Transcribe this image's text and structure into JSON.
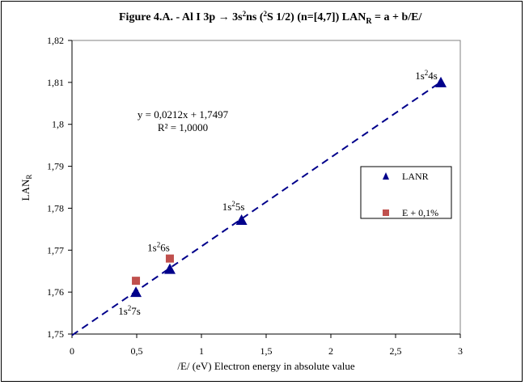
{
  "chart_data": {
    "type": "scatter",
    "title": {
      "prefix": "Figure 4.A. - Al I 3p ",
      "arrow": "→",
      "config": " 3s",
      "config_sup": "2",
      "config2": "ns (",
      "term_sup": "2",
      "term": "S 1/2) (n=[4,7])  LAN",
      "sub": "R",
      "suffix": " = a + b/E/"
    },
    "xlabel": "/E/ (eV) Electron energy in absolute value",
    "ylabel": "LAN",
    "ylabel_sub": "R",
    "xlim": [
      0,
      3
    ],
    "ylim": [
      1.75,
      1.82
    ],
    "xticks": [
      0,
      0.5,
      1,
      1.5,
      2,
      2.5,
      3
    ],
    "xtick_labels": [
      "0",
      "0,5",
      "1",
      "1,5",
      "2",
      "2,5",
      "3"
    ],
    "yticks": [
      1.75,
      1.76,
      1.77,
      1.78,
      1.79,
      1.8,
      1.81,
      1.82
    ],
    "ytick_labels": [
      "1,75",
      "1,76",
      "1,77",
      "1,78",
      "1,79",
      "1,8",
      "1,81",
      "1,82"
    ],
    "grid": false,
    "legend_position": "right",
    "series": [
      {
        "name": "LANR",
        "marker": "triangle",
        "color": "#00008B",
        "x": [
          2.85,
          1.31,
          0.756,
          0.494
        ],
        "y": [
          1.81,
          1.7772,
          1.7655,
          1.76
        ],
        "point_labels": [
          {
            "base": "1s",
            "sup": "2",
            "tail": "4s"
          },
          {
            "base": "1s",
            "sup": "2",
            "tail": "5s"
          },
          {
            "base": "1s",
            "sup": "2",
            "tail": "6s"
          },
          {
            "base": "1s",
            "sup": "2",
            "tail": "7s"
          }
        ]
      },
      {
        "name": "E + 0,1%",
        "marker": "square",
        "color": "#C0504D",
        "x": [
          0.756,
          0.494
        ],
        "y": [
          1.768,
          1.7627
        ]
      }
    ],
    "trendline": {
      "slope": 0.0212,
      "intercept": 1.7497,
      "color": "#00008B",
      "style": "dashed",
      "x_range": [
        0,
        2.85
      ],
      "equation_text": "y = 0,0212x + 1,7497",
      "r2_text": "R² = 1,0000"
    }
  }
}
